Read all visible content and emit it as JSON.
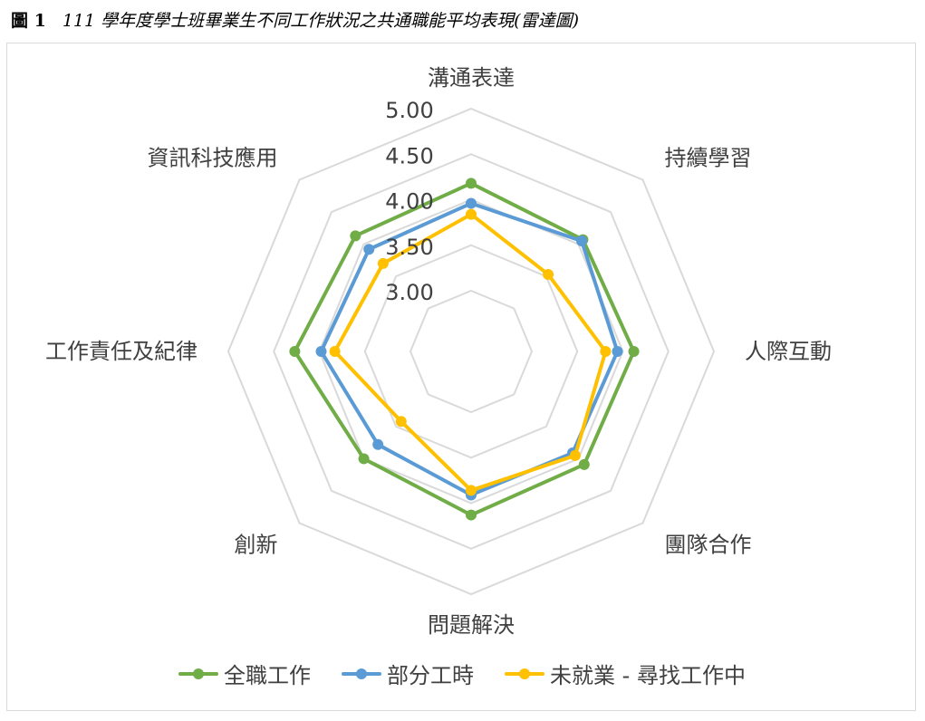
{
  "caption": {
    "number": "圖 1",
    "title": "111 學年度學士班畢業生不同工作狀況之共通職能平均表現(雷達圖)"
  },
  "chart_data": {
    "type": "radar",
    "title": "",
    "axes": [
      "溝通表達",
      "持續學習",
      "人際互動",
      "團隊合作",
      "問題解決",
      "創新",
      "工作責任及紀律",
      "資訊科技應用"
    ],
    "rmin": 3.0,
    "rmax": 5.0,
    "ticks": [
      "3.00",
      "3.50",
      "4.00",
      "4.50",
      "5.00"
    ],
    "tick_values": [
      3.0,
      3.5,
      4.0,
      4.5,
      5.0
    ],
    "grid": true,
    "legend_position": "bottom",
    "series": [
      {
        "name": "全職工作",
        "color": "#70ad47",
        "values": [
          4.18,
          4.07,
          4.12,
          4.09,
          4.13,
          4.0,
          4.27,
          4.13
        ]
      },
      {
        "name": "部分工時",
        "color": "#5b9bd5",
        "values": [
          3.96,
          4.05,
          3.94,
          3.91,
          3.91,
          3.78,
          3.98,
          3.92
        ]
      },
      {
        "name": "未就業 - 尋找工作中",
        "color": "#ffc000",
        "values": [
          3.84,
          3.53,
          3.81,
          3.95,
          3.86,
          3.42,
          3.83,
          3.7
        ]
      }
    ]
  }
}
